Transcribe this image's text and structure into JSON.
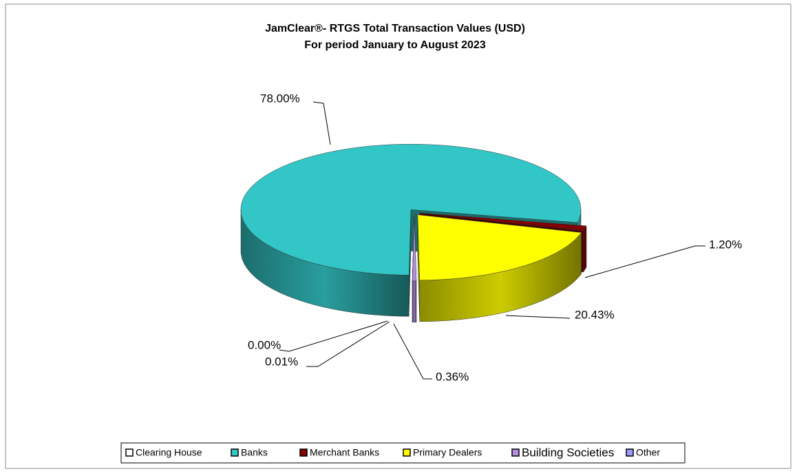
{
  "chart_data": {
    "type": "pie",
    "title": "JamClear®- RTGS Total Transaction Values (USD)",
    "subtitle": "For period January to August 2023",
    "categories": [
      "Clearing House",
      "Banks",
      "Merchant Banks",
      "Primary Dealers",
      "Building Societies",
      "Other"
    ],
    "values": [
      0,
      78,
      1.2,
      20.43,
      0.36,
      0.01
    ],
    "value_labels": [
      "0.00%",
      "78.00%",
      "1.20%",
      "20.43%",
      "0.36%",
      "0.01%"
    ],
    "colors": [
      "#ffffff",
      "#33c6c6",
      "#800000",
      "#ffff00",
      "#b48ee0",
      "#9999ff"
    ],
    "legend": "bottom"
  }
}
